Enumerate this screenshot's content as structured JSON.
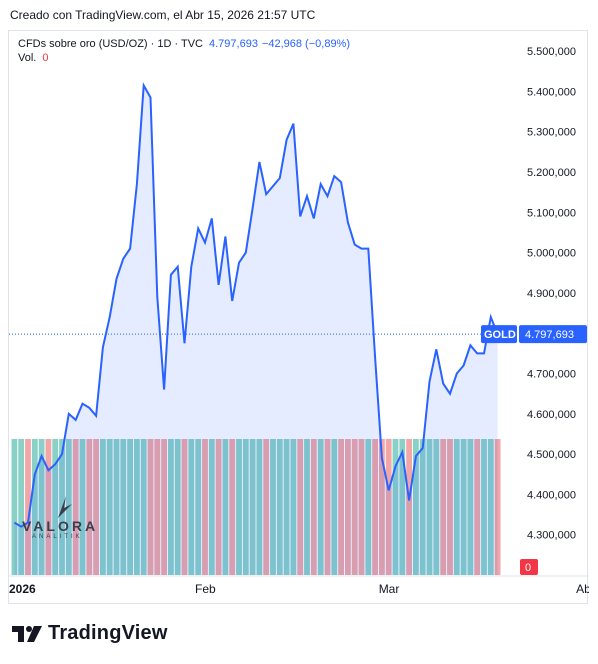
{
  "header": {
    "created": "Creado con TradingView.com, el Abr 15, 2026 21:57 UTC"
  },
  "legend": {
    "symbol": "CFDs sobre oro (USD/OZ) · 1D · TVC",
    "last": "4.797,693",
    "change": "−42,968 (−0,89%)",
    "vol_label": "Vol.",
    "vol_value": "0"
  },
  "price_tag": {
    "ticker": "GOLD",
    "value": "4.797,693",
    "color": "#2962ff"
  },
  "vol_tag": {
    "value": "0",
    "color": "#f23645"
  },
  "footer": {
    "brand": "TradingView"
  },
  "watermark": {
    "title": "VALORA",
    "subtitle": "ANALITIK"
  },
  "colors": {
    "line": "#2962ff",
    "area": "#2962ff",
    "vol_up": "#89d1c6",
    "vol_down": "#f2a6a6"
  },
  "chart_data": {
    "type": "area",
    "title": "",
    "ylim": [
      4200000,
      5550000
    ],
    "y_ticks": [
      4300000,
      4400000,
      4500000,
      4600000,
      4700000,
      4800000,
      4900000,
      5000000,
      5100000,
      5200000,
      5300000,
      5400000,
      5500000
    ],
    "y_tick_labels": [
      "4.300,000",
      "4.400,000",
      "4.500,000",
      "4.600,000",
      "4.700,000",
      "4.800,000",
      "4.900,000",
      "5.000,000",
      "5.100,000",
      "5.200,000",
      "5.300,000",
      "5.400,000",
      "5.500,000"
    ],
    "x_labels": [
      {
        "index": 0,
        "label": "2026"
      },
      {
        "index": 28,
        "label": "Feb"
      },
      {
        "index": 55,
        "label": "Mar"
      },
      {
        "index": 84,
        "label": "Abr"
      }
    ],
    "last_price": 4797693,
    "series": [
      {
        "values": [
          4330000,
          4320000,
          4330000,
          4450000,
          4495000,
          4460000,
          4475000,
          4500000,
          4600000,
          4585000,
          4625000,
          4615000,
          4595000,
          4765000,
          4840000,
          4935000,
          4985000,
          5010000,
          5170000,
          5415000,
          5385000,
          4890000,
          4660000,
          4945000,
          4965000,
          4775000,
          4965000,
          5060000,
          5025000,
          5085000,
          4920000,
          5040000,
          4880000,
          4975000,
          5000000,
          5110000,
          5225000,
          5145000,
          5165000,
          5185000,
          5280000,
          5320000,
          5090000,
          5140000,
          5085000,
          5170000,
          5140000,
          5190000,
          5175000,
          5075000,
          5020000,
          5010000,
          5010000,
          4740000,
          4490000,
          4410000,
          4470000,
          4505000,
          4385000,
          4495000,
          4515000,
          4680000,
          4760000,
          4675000,
          4650000,
          4700000,
          4720000,
          4770000,
          4750000,
          4750000,
          4840000,
          4797693
        ],
        "volume_up": [
          true,
          true,
          false,
          true,
          true,
          false,
          true,
          true,
          true,
          false,
          true,
          false,
          false,
          true,
          true,
          true,
          true,
          true,
          true,
          true,
          false,
          false,
          false,
          true,
          true,
          false,
          true,
          true,
          false,
          true,
          false,
          true,
          false,
          true,
          true,
          true,
          true,
          false,
          true,
          true,
          true,
          true,
          false,
          true,
          false,
          true,
          false,
          true,
          false,
          false,
          false,
          false,
          true,
          false,
          false,
          false,
          true,
          true,
          false,
          true,
          true,
          true,
          true,
          false,
          false,
          true,
          true,
          true,
          false,
          true,
          true,
          false
        ]
      }
    ]
  }
}
